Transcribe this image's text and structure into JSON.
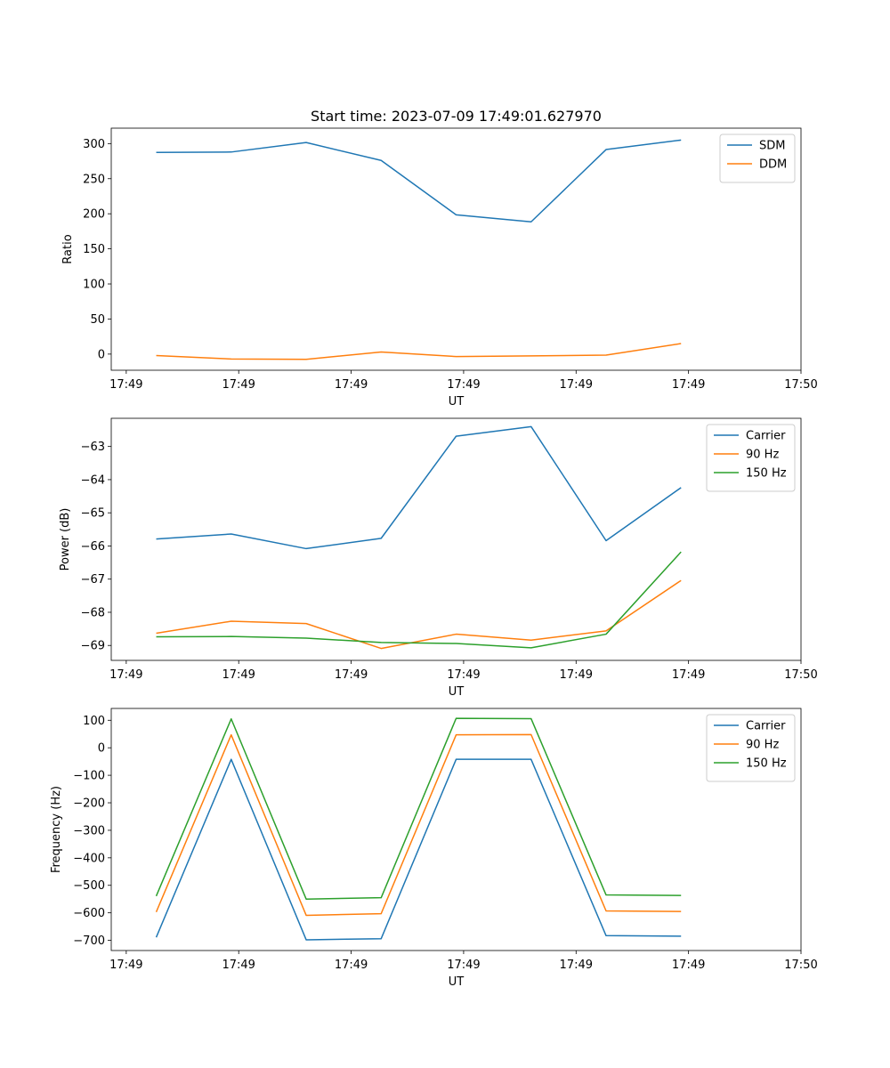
{
  "colors": {
    "blue": "#1f77b4",
    "orange": "#ff7f0e",
    "green": "#2ca02c"
  },
  "figure_title": "Start time: 2023-07-09 17:49:01.627970",
  "chart_data": [
    {
      "type": "line",
      "title": "Start time: 2023-07-09 17:49:01.627970",
      "xlabel": "UT",
      "ylabel": "Ratio",
      "xlim": [
        -0.6,
        8.6
      ],
      "ylim": [
        -23,
        322
      ],
      "x_ticks": [
        -0.4,
        1.1,
        2.6,
        4.1,
        5.6,
        7.1,
        8.6
      ],
      "x_tick_labels": [
        "17:49",
        "17:49",
        "17:49",
        "17:49",
        "17:49",
        "17:49",
        "17:50"
      ],
      "y_ticks": [
        0,
        50,
        100,
        150,
        200,
        250,
        300
      ],
      "y_tick_labels": [
        "0",
        "50",
        "100",
        "150",
        "200",
        "250",
        "300"
      ],
      "legend_position": "top-right",
      "x": [
        0,
        1,
        2,
        3,
        4,
        5,
        6,
        7
      ],
      "series": [
        {
          "name": "SDM",
          "color": "#1f77b4",
          "values": [
            287.5,
            288.0,
            301.5,
            276.0,
            198.5,
            188.5,
            291.5,
            305.0
          ]
        },
        {
          "name": "DDM",
          "color": "#ff7f0e",
          "values": [
            -2.0,
            -7.0,
            -7.5,
            3.0,
            -3.5,
            -2.5,
            -1.5,
            15.0
          ]
        }
      ]
    },
    {
      "type": "line",
      "title": "",
      "xlabel": "UT",
      "ylabel": "Power (dB)",
      "xlim": [
        -0.6,
        8.6
      ],
      "ylim": [
        -69.45,
        -62.15
      ],
      "x_ticks": [
        -0.4,
        1.1,
        2.6,
        4.1,
        5.6,
        7.1,
        8.6
      ],
      "x_tick_labels": [
        "17:49",
        "17:49",
        "17:49",
        "17:49",
        "17:49",
        "17:49",
        "17:50"
      ],
      "y_ticks": [
        -69,
        -68,
        -67,
        -66,
        -65,
        -64,
        -63
      ],
      "y_tick_labels": [
        "−69",
        "−68",
        "−67",
        "−66",
        "−65",
        "−64",
        "−63"
      ],
      "legend_position": "top-right",
      "x": [
        0,
        1,
        2,
        3,
        4,
        5,
        6,
        7
      ],
      "series": [
        {
          "name": "Carrier",
          "color": "#1f77b4",
          "values": [
            -65.79,
            -65.64,
            -66.08,
            -65.77,
            -62.69,
            -62.4,
            -65.84,
            -64.24
          ]
        },
        {
          "name": "90 Hz",
          "color": "#ff7f0e",
          "values": [
            -68.63,
            -68.27,
            -68.34,
            -69.09,
            -68.66,
            -68.84,
            -68.56,
            -67.04
          ]
        },
        {
          "name": "150 Hz",
          "color": "#2ca02c",
          "values": [
            -68.74,
            -68.73,
            -68.78,
            -68.91,
            -68.94,
            -69.07,
            -68.66,
            -66.18
          ]
        }
      ]
    },
    {
      "type": "line",
      "title": "",
      "xlabel": "UT",
      "ylabel": "Frequency (Hz)",
      "xlim": [
        -0.6,
        8.6
      ],
      "ylim": [
        -737,
        143
      ],
      "x_ticks": [
        -0.4,
        1.1,
        2.6,
        4.1,
        5.6,
        7.1,
        8.6
      ],
      "x_tick_labels": [
        "17:49",
        "17:49",
        "17:49",
        "17:49",
        "17:49",
        "17:49",
        "17:50"
      ],
      "y_ticks": [
        -700,
        -600,
        -500,
        -400,
        -300,
        -200,
        -100,
        0,
        100
      ],
      "y_tick_labels": [
        "−700",
        "−600",
        "−500",
        "−400",
        "−300",
        "−200",
        "−100",
        "0",
        "100"
      ],
      "legend_position": "top-right",
      "x": [
        0,
        1,
        2,
        3,
        4,
        5,
        6,
        7
      ],
      "series": [
        {
          "name": "Carrier",
          "color": "#1f77b4",
          "values": [
            -689,
            -42,
            -698,
            -694,
            -42,
            -42,
            -683,
            -685
          ]
        },
        {
          "name": "90 Hz",
          "color": "#ff7f0e",
          "values": [
            -597,
            47,
            -609,
            -603,
            47,
            48,
            -593,
            -595
          ]
        },
        {
          "name": "150 Hz",
          "color": "#2ca02c",
          "values": [
            -539,
            105,
            -550,
            -545,
            107,
            106,
            -535,
            -537
          ]
        }
      ]
    }
  ]
}
